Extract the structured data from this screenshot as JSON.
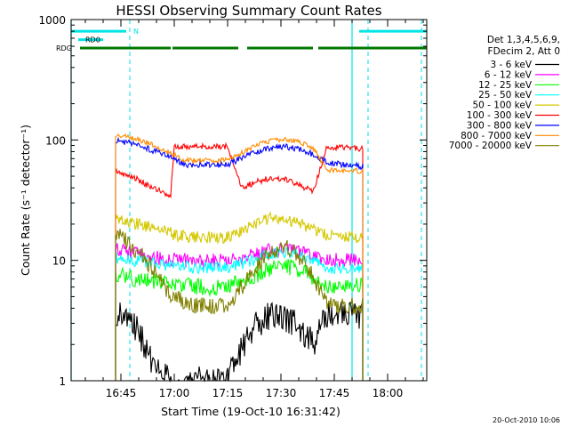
{
  "chart_data": {
    "type": "line",
    "title": "HESSI Observing Summary Count Rates",
    "xlabel": "Start Time (19-Oct-10 16:31:42)",
    "ylabel": "Count Rate (s⁻¹ detector⁻¹)",
    "y_scale": "log",
    "ylim": [
      1,
      1000
    ],
    "xlim_minutes_after_1631": [
      0,
      100
    ],
    "y_ticks": [
      "1",
      "10",
      "100",
      "1000"
    ],
    "x_ticks": [
      "16:45",
      "17:00",
      "17:15",
      "17:30",
      "17:45",
      "18:00"
    ],
    "x_tick_minutes_after_1631": [
      14,
      29,
      44,
      59,
      74,
      89
    ],
    "legend_header": [
      "Det 1,3,4,5,6,9,",
      "FDecim 2, Att 0"
    ],
    "legend_placement": "right, outside plot",
    "timestamp": "20-Oct-2010 10:06",
    "flags": [
      {
        "label": "N",
        "color": "#00e5e5",
        "y_level": 800
      },
      {
        "label": "RD0",
        "color": "#00e5e5",
        "y_level": 680
      },
      {
        "label": "RDG",
        "color": "#007800",
        "y_level": 580
      }
    ],
    "flag_segments": {
      "N": [
        [
          0,
          15.5
        ],
        [
          81,
          100
        ]
      ],
      "RD0": [
        [
          2,
          9
        ]
      ],
      "RDG": [
        [
          2.5,
          28
        ],
        [
          28.5,
          47
        ],
        [
          49.5,
          68
        ],
        [
          69.5,
          100
        ]
      ]
    },
    "vlines_solid_minutes": [
      0,
      79
    ],
    "vlines_dashed_minutes": [
      16.5,
      83.5,
      98.5
    ],
    "data_window_minutes": [
      12.5,
      82
    ],
    "series": [
      {
        "name": "3 - 6 keV",
        "color": "#000000",
        "x": [
          13,
          16,
          19,
          22,
          28,
          44,
          48,
          52,
          56,
          60,
          64,
          68,
          72,
          82
        ],
        "y": [
          3.5,
          3.4,
          2.6,
          1.6,
          1.0,
          1.0,
          1.9,
          2.9,
          3.5,
          3.4,
          2.9,
          2.0,
          3.5,
          3.5
        ]
      },
      {
        "name": "6 - 12 keV",
        "color": "#ff00ff",
        "x": [
          13,
          16,
          20,
          24,
          28,
          34,
          44,
          50,
          56,
          60,
          64,
          68,
          72,
          77,
          82
        ],
        "y": [
          12.5,
          11.8,
          11.0,
          10.5,
          10.2,
          10.0,
          10.0,
          10.8,
          12.2,
          12.5,
          12.0,
          10.8,
          10.0,
          10.0,
          10.0
        ]
      },
      {
        "name": "12 - 25 keV",
        "color": "#00ff00",
        "x": [
          13,
          18,
          24,
          28,
          36,
          44,
          50,
          56,
          60,
          64,
          68,
          72,
          82
        ],
        "y": [
          7.5,
          7.0,
          6.6,
          6.2,
          6.0,
          6.0,
          7.0,
          8.6,
          9.0,
          8.5,
          7.2,
          6.2,
          6.2
        ]
      },
      {
        "name": "25 - 50 keV",
        "color": "#00ffff",
        "x": [
          13,
          18,
          24,
          28,
          34,
          44,
          50,
          56,
          60,
          64,
          68,
          72,
          82
        ],
        "y": [
          10.5,
          10.0,
          9.5,
          9.0,
          8.7,
          8.7,
          9.8,
          11.2,
          11.8,
          11.2,
          9.8,
          8.6,
          8.6
        ]
      },
      {
        "name": "50 - 100 keV",
        "color": "#d4c800",
        "x": [
          13,
          16,
          22,
          28,
          29,
          36,
          44,
          48,
          52,
          56,
          60,
          64,
          68,
          72,
          82
        ],
        "y": [
          23,
          21,
          19,
          17,
          16,
          15.5,
          15.5,
          17.5,
          20.5,
          22.5,
          22.5,
          20.5,
          18,
          16,
          15.5
        ]
      },
      {
        "name": "100 - 300 keV",
        "color": "#ff0000",
        "x": [
          13,
          17,
          21,
          24,
          28,
          29,
          36,
          44,
          48,
          52,
          56,
          60,
          64,
          68,
          72,
          82
        ],
        "y": [
          54,
          50,
          43,
          39,
          35,
          88,
          88,
          88,
          40,
          45,
          48,
          47,
          43,
          37,
          88,
          84
        ]
      },
      {
        "name": "300 - 800 keV",
        "color": "#0000ff",
        "x": [
          13,
          16,
          20,
          24,
          28,
          32,
          44,
          48,
          52,
          56,
          60,
          64,
          68,
          72,
          82
        ],
        "y": [
          98,
          95,
          88,
          80,
          72,
          62,
          62,
          71,
          80,
          86,
          88,
          84,
          76,
          65,
          60
        ]
      },
      {
        "name": "800 - 7000 keV",
        "color": "#ff8c00",
        "x": [
          13,
          16,
          20,
          24,
          28,
          32,
          44,
          48,
          52,
          56,
          60,
          64,
          68,
          72,
          82
        ],
        "y": [
          110,
          106,
          98,
          88,
          78,
          68,
          68,
          78,
          90,
          98,
          102,
          97,
          86,
          56,
          55
        ]
      },
      {
        "name": "7000 - 20000 keV",
        "color": "#808000",
        "x": [
          13,
          16,
          20,
          24,
          28,
          34,
          44,
          48,
          52,
          56,
          60,
          64,
          68,
          72,
          82
        ],
        "y": [
          17,
          14,
          11,
          7.5,
          5.2,
          4.2,
          4.2,
          6,
          9,
          12,
          13,
          11,
          7.5,
          4.2,
          4.2
        ]
      }
    ]
  }
}
